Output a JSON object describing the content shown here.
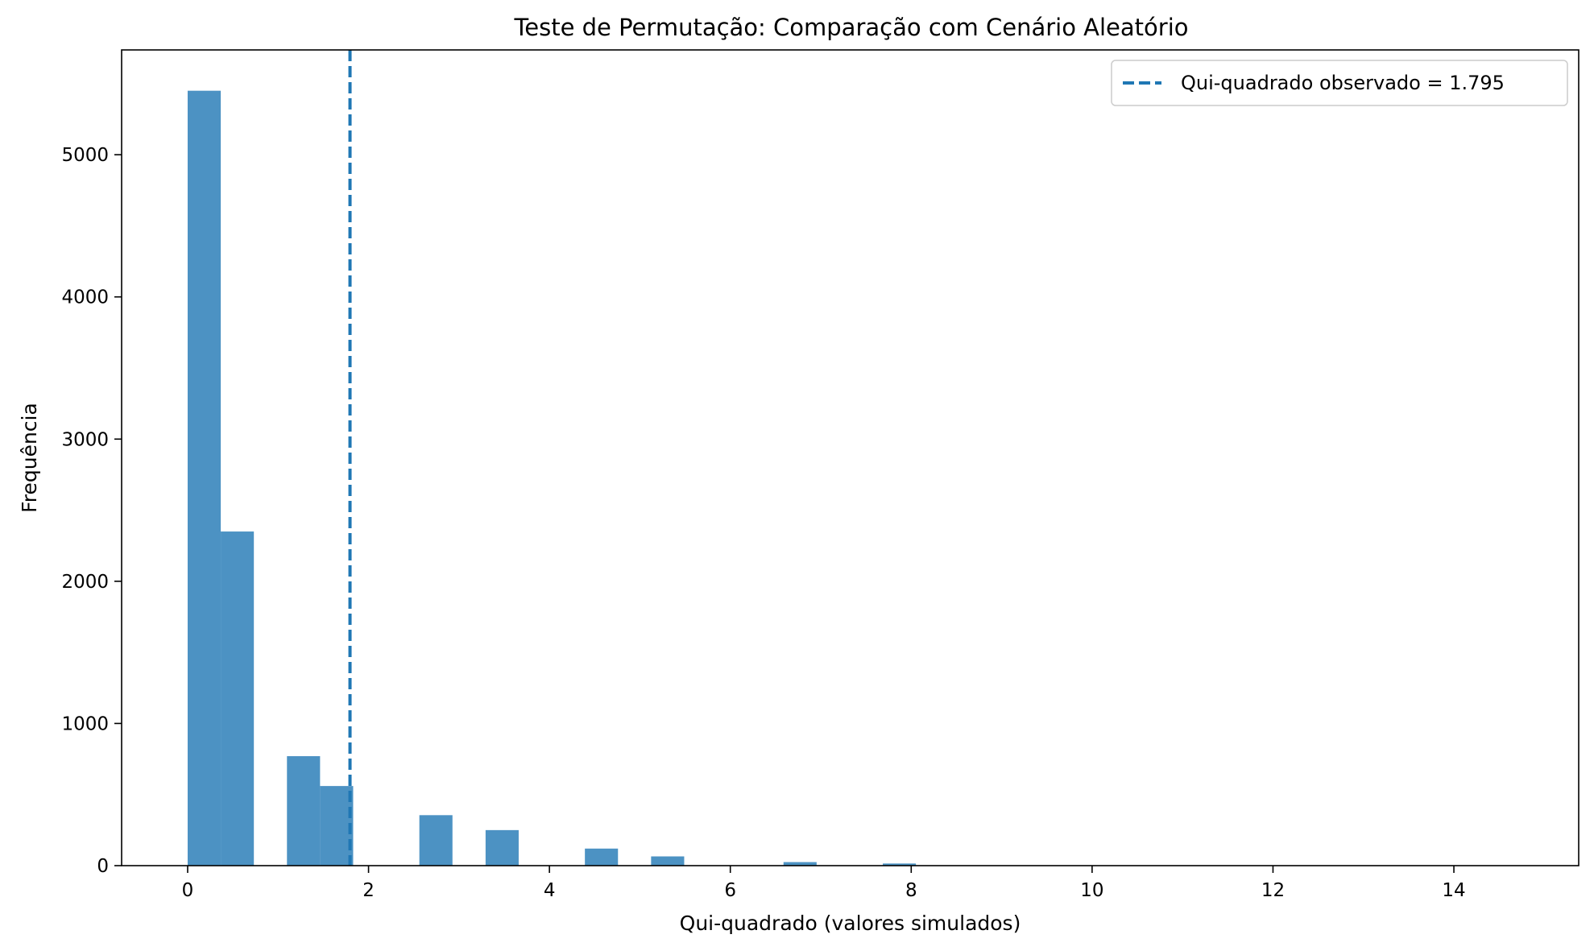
{
  "chart_data": {
    "type": "bar",
    "title": "Teste de Permutação: Comparação com Cenário Aleatório",
    "xlabel": "Qui-quadrado (valores simulados)",
    "ylabel": "Frequência",
    "xlim": [
      -0.73,
      15.38
    ],
    "ylim": [
      0,
      5737
    ],
    "xticks": [
      0,
      2,
      4,
      6,
      8,
      10,
      12,
      14
    ],
    "yticks": [
      0,
      1000,
      2000,
      3000,
      4000,
      5000
    ],
    "bar_color": "#1f77b4",
    "bar_opacity": 0.8,
    "bins": [
      {
        "x0": 0.0,
        "x1": 0.366,
        "value": 5450
      },
      {
        "x0": 0.366,
        "x1": 0.732,
        "value": 2350
      },
      {
        "x0": 0.732,
        "x1": 1.098,
        "value": 0
      },
      {
        "x0": 1.098,
        "x1": 1.464,
        "value": 770
      },
      {
        "x0": 1.464,
        "x1": 1.83,
        "value": 560
      },
      {
        "x0": 2.562,
        "x1": 2.928,
        "value": 355
      },
      {
        "x0": 3.294,
        "x1": 3.66,
        "value": 250
      },
      {
        "x0": 4.392,
        "x1": 4.758,
        "value": 120
      },
      {
        "x0": 5.124,
        "x1": 5.49,
        "value": 65
      },
      {
        "x0": 6.588,
        "x1": 6.954,
        "value": 25
      },
      {
        "x0": 7.686,
        "x1": 8.052,
        "value": 15
      }
    ],
    "vline": {
      "x": 1.795,
      "label": "Qui-quadrado observado = 1.795",
      "color": "#1f77b4",
      "style": "dashed"
    },
    "legend": {
      "position": "top-right"
    },
    "grid": false
  }
}
